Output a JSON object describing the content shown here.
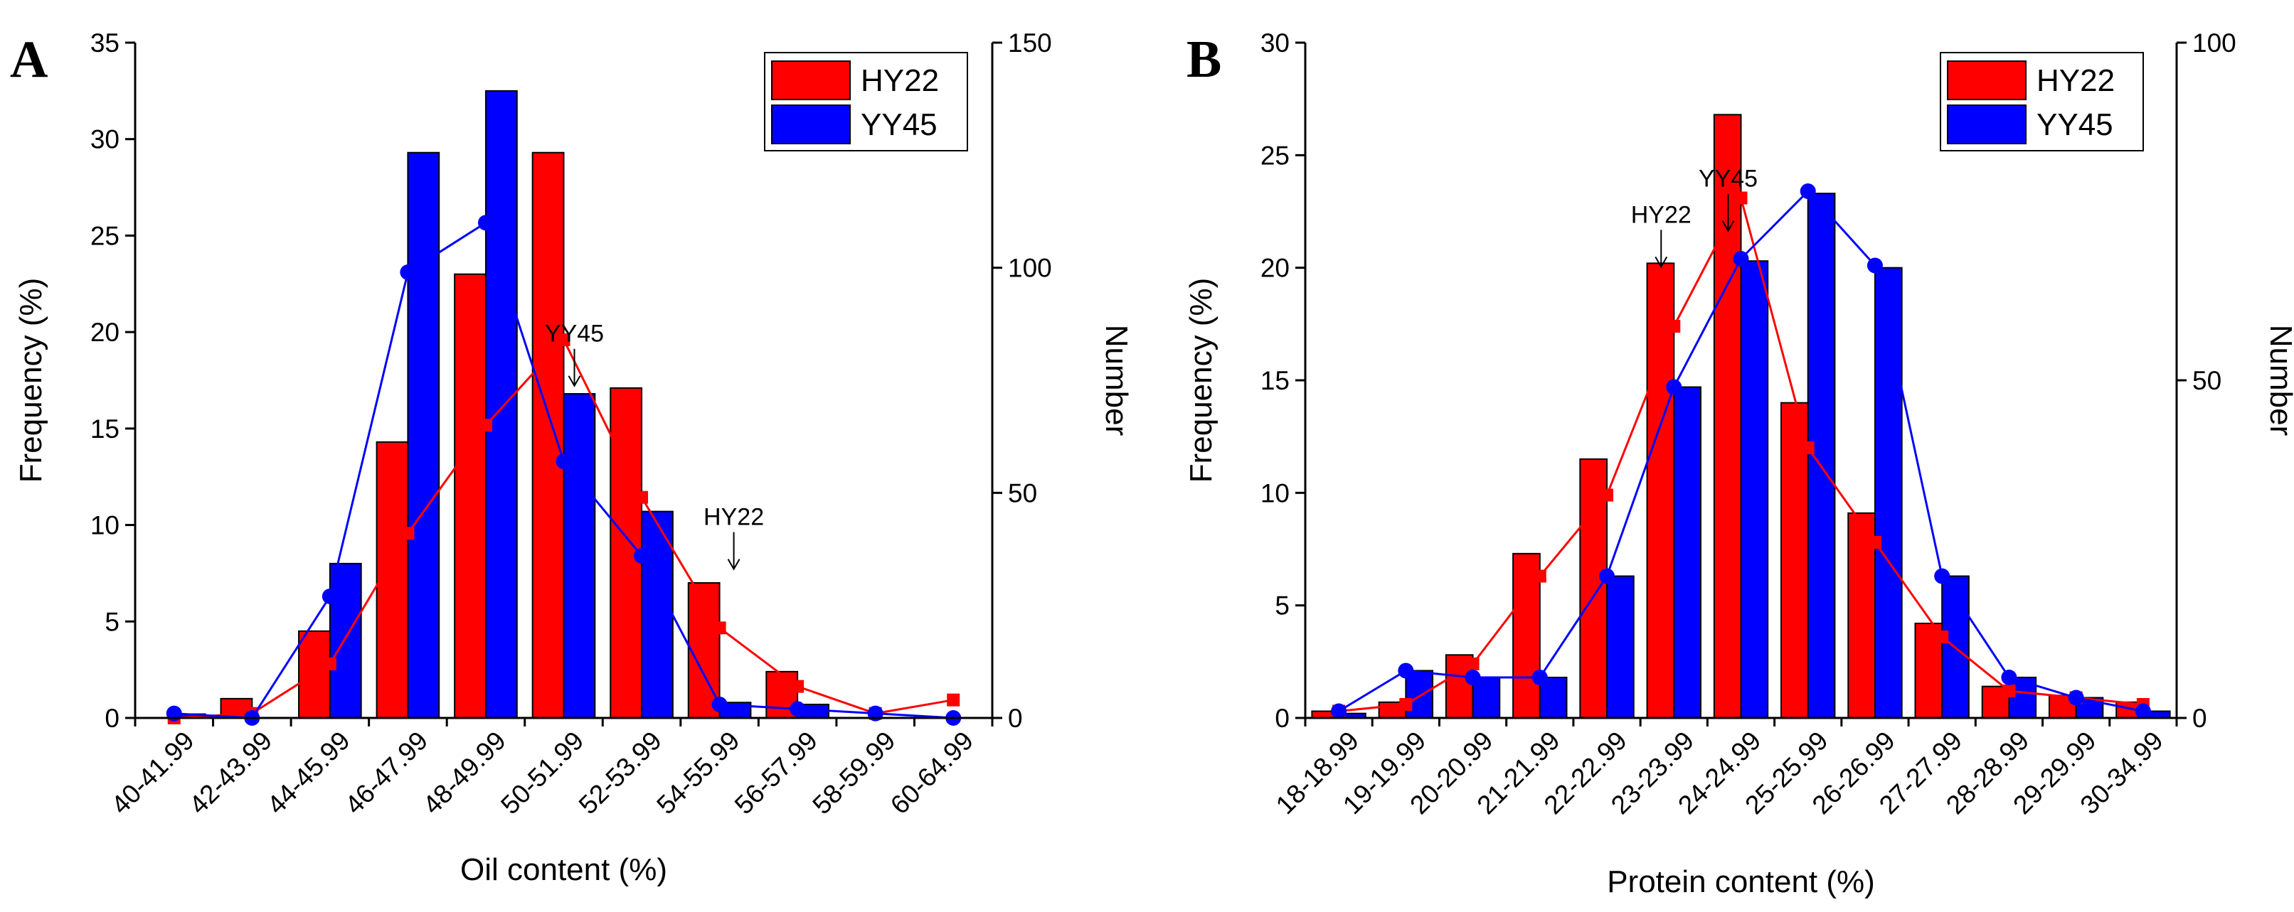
{
  "chart_data": [
    {
      "type": "bar",
      "panel_label": "A",
      "categories": [
        "40-41.99",
        "42-43.99",
        "44-45.99",
        "46-47.99",
        "48-49.99",
        "50-51.99",
        "52-53.99",
        "54-55.99",
        "56-57.99",
        "58-59.99",
        "60-64.99"
      ],
      "xlabel": "Oil content (%)",
      "ylabel": "Frequency (%)",
      "y2label": "Number",
      "ylim": [
        0,
        35
      ],
      "yticks": [
        0,
        5,
        10,
        15,
        20,
        25,
        30,
        35
      ],
      "y2lim": [
        0,
        150
      ],
      "y2ticks": [
        0,
        50,
        100,
        150
      ],
      "series": [
        {
          "name": "HY22",
          "color": "#ff0000",
          "values": [
            0,
            1.0,
            4.5,
            14.3,
            23.0,
            29.3,
            17.1,
            7.0,
            2.4,
            0,
            0
          ]
        },
        {
          "name": "YY45",
          "color": "#0000ff",
          "values": [
            0.2,
            0,
            8.0,
            29.3,
            32.5,
            16.8,
            10.7,
            0.8,
            0.7,
            0,
            0
          ]
        }
      ],
      "line_series": [
        {
          "name": "HY22",
          "color": "#ff0000",
          "marker": "square",
          "values": [
            0,
            1,
            12,
            41,
            65,
            84,
            49,
            20,
            7,
            1,
            4
          ]
        },
        {
          "name": "YY45",
          "color": "#0000ff",
          "marker": "circle",
          "values": [
            1,
            0,
            27,
            99,
            110,
            57,
            36,
            3,
            2,
            1,
            0
          ]
        }
      ],
      "legend": {
        "position": "top-right",
        "entries": [
          "HY22",
          "YY45"
        ]
      },
      "annotations": [
        {
          "text": "YY45",
          "category_index": 5,
          "y": 19.5
        },
        {
          "text": "HY22",
          "category_index": 7,
          "y": 10.0
        }
      ]
    },
    {
      "type": "bar",
      "panel_label": "B",
      "categories": [
        "18-18.99",
        "19-19.99",
        "20-20.99",
        "21-21.99",
        "22-22.99",
        "23-23.99",
        "24-24.99",
        "25-25.99",
        "26-26.99",
        "27-27.99",
        "28-28.99",
        "29-29.99",
        "30-34.99"
      ],
      "xlabel": "Protein content (%)",
      "ylabel": "Frequency (%)",
      "y2label": "Number",
      "ylim": [
        0,
        30
      ],
      "yticks": [
        0,
        5,
        10,
        15,
        20,
        25,
        30
      ],
      "y2lim": [
        0,
        100
      ],
      "y2ticks": [
        0,
        50,
        100
      ],
      "series": [
        {
          "name": "HY22",
          "color": "#ff0000",
          "values": [
            0.3,
            0.7,
            2.8,
            7.3,
            11.5,
            20.2,
            26.8,
            14.0,
            9.1,
            4.2,
            1.4,
            1.0,
            0.7
          ]
        },
        {
          "name": "YY45",
          "color": "#0000ff",
          "values": [
            0.2,
            2.1,
            1.8,
            1.8,
            6.3,
            14.7,
            20.3,
            23.3,
            20.0,
            6.3,
            1.8,
            0.9,
            0.3
          ]
        }
      ],
      "line_series": [
        {
          "name": "HY22",
          "color": "#ff0000",
          "marker": "square",
          "values": [
            1,
            2,
            8,
            21,
            33,
            58,
            77,
            40,
            26,
            12,
            4,
            3,
            2
          ]
        },
        {
          "name": "YY45",
          "color": "#0000ff",
          "marker": "circle",
          "values": [
            1,
            7,
            6,
            6,
            21,
            49,
            68,
            78,
            67,
            21,
            6,
            3,
            1
          ]
        }
      ],
      "legend": {
        "position": "top-right",
        "entries": [
          "HY22",
          "YY45"
        ]
      },
      "annotations": [
        {
          "text": "HY22",
          "category_index": 5,
          "y": 22.0
        },
        {
          "text": "YY45",
          "category_index": 6,
          "y": 23.6
        }
      ]
    }
  ]
}
